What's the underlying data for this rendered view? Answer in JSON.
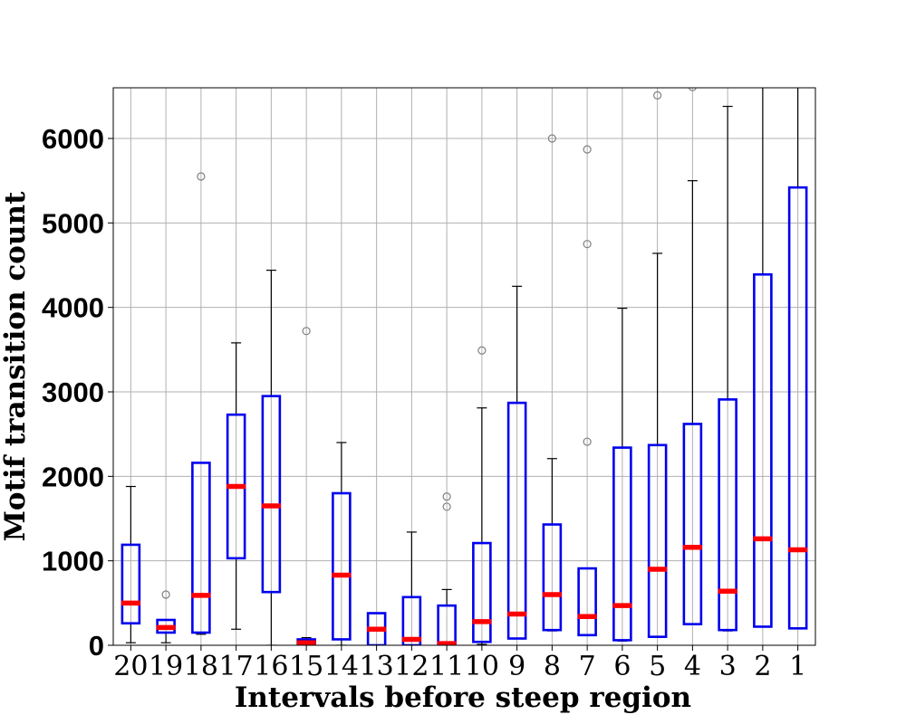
{
  "chart_data": {
    "type": "boxplot",
    "xlabel": "Intervals before steep region",
    "ylabel": "Motif transition count",
    "categories": [
      "20",
      "19",
      "18",
      "17",
      "16",
      "15",
      "14",
      "13",
      "12",
      "11",
      "10",
      "9",
      "8",
      "7",
      "6",
      "5",
      "4",
      "3",
      "2",
      "1"
    ],
    "ylim": [
      0,
      6600
    ],
    "yticks": [
      0,
      1000,
      2000,
      3000,
      4000,
      5000,
      6000
    ],
    "grid": true,
    "colors": {
      "box": "#0000ee",
      "median": "#ff0000",
      "whisker": "#000000",
      "outlier": "#808080",
      "grid": "#b0b0b0"
    },
    "boxes": [
      {
        "label": "20",
        "whislo": 30,
        "q1": 260,
        "med": 500,
        "q3": 1190,
        "whishi": 1880,
        "fliers": []
      },
      {
        "label": "19",
        "whislo": 30,
        "q1": 150,
        "med": 210,
        "q3": 300,
        "whishi": 300,
        "fliers": [
          600
        ]
      },
      {
        "label": "18",
        "whislo": 130,
        "q1": 150,
        "med": 590,
        "q3": 2160,
        "whishi": 2160,
        "fliers": [
          5550
        ]
      },
      {
        "label": "17",
        "whislo": 190,
        "q1": 1030,
        "med": 1880,
        "q3": 2730,
        "whishi": 3580,
        "fliers": []
      },
      {
        "label": "16",
        "whislo": 0,
        "q1": 630,
        "med": 1650,
        "q3": 2950,
        "whishi": 4440,
        "fliers": []
      },
      {
        "label": "15",
        "whislo": 0,
        "q1": 0,
        "med": 30,
        "q3": 70,
        "whishi": 90,
        "fliers": [
          3720
        ]
      },
      {
        "label": "14",
        "whislo": 0,
        "q1": 70,
        "med": 830,
        "q3": 1800,
        "whishi": 2400,
        "fliers": []
      },
      {
        "label": "13",
        "whislo": 0,
        "q1": 0,
        "med": 190,
        "q3": 380,
        "whishi": 380,
        "fliers": []
      },
      {
        "label": "12",
        "whislo": 0,
        "q1": 0,
        "med": 70,
        "q3": 570,
        "whishi": 1340,
        "fliers": []
      },
      {
        "label": "11",
        "whislo": 0,
        "q1": 0,
        "med": 20,
        "q3": 470,
        "whishi": 660,
        "fliers": [
          1640,
          1760
        ]
      },
      {
        "label": "10",
        "whislo": 10,
        "q1": 40,
        "med": 280,
        "q3": 1210,
        "whishi": 2810,
        "fliers": [
          3490
        ]
      },
      {
        "label": "9",
        "whislo": 80,
        "q1": 80,
        "med": 370,
        "q3": 2870,
        "whishi": 4250,
        "fliers": []
      },
      {
        "label": "8",
        "whislo": 170,
        "q1": 180,
        "med": 600,
        "q3": 1430,
        "whishi": 2210,
        "fliers": [
          6000
        ]
      },
      {
        "label": "7",
        "whislo": 120,
        "q1": 120,
        "med": 340,
        "q3": 910,
        "whishi": 910,
        "fliers": [
          2410,
          4750,
          5870
        ]
      },
      {
        "label": "6",
        "whislo": 50,
        "q1": 60,
        "med": 470,
        "q3": 2340,
        "whishi": 3990,
        "fliers": []
      },
      {
        "label": "5",
        "whislo": 100,
        "q1": 100,
        "med": 900,
        "q3": 2370,
        "whishi": 4640,
        "fliers": [
          6510
        ]
      },
      {
        "label": "4",
        "whislo": 250,
        "q1": 250,
        "med": 1160,
        "q3": 2620,
        "whishi": 5500,
        "fliers": [
          6610
        ]
      },
      {
        "label": "3",
        "whislo": 170,
        "q1": 180,
        "med": 640,
        "q3": 2910,
        "whishi": 6380,
        "fliers": []
      },
      {
        "label": "2",
        "whislo": 220,
        "q1": 220,
        "med": 1260,
        "q3": 4390,
        "whishi": 6620,
        "fliers": []
      },
      {
        "label": "1",
        "whislo": 200,
        "q1": 200,
        "med": 1130,
        "q3": 5420,
        "whishi": 6620,
        "fliers": []
      }
    ]
  }
}
